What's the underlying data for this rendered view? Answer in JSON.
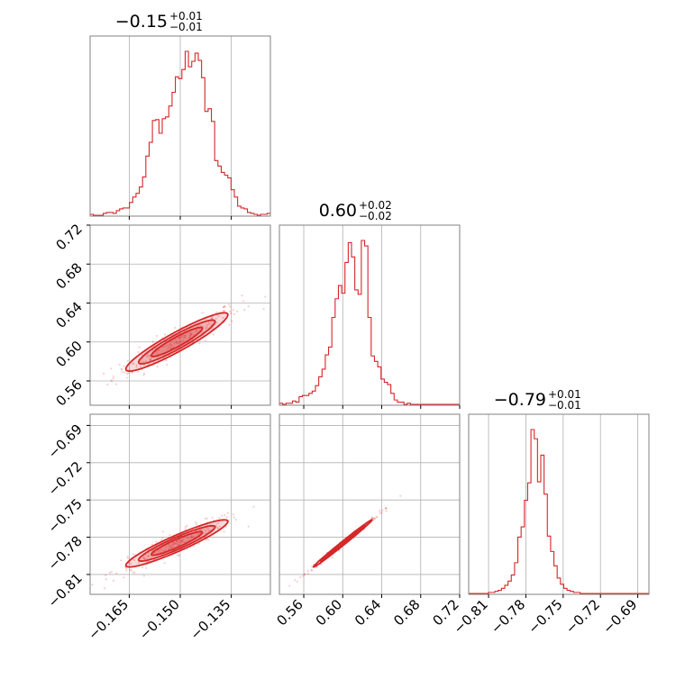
{
  "chart_data": {
    "type": "corner",
    "color": "#d62728",
    "grid": true,
    "parameters": [
      {
        "title_main": "−0.15",
        "title_sup": "+0.01",
        "title_sub": "−0.01",
        "range": [
          -0.1765,
          -0.1235
        ],
        "ticks": [
          -0.165,
          -0.15,
          -0.135
        ],
        "tick_labels": [
          "−0.165",
          "−0.150",
          "−0.135"
        ]
      },
      {
        "title_main": "0.60",
        "title_sup": "+0.02",
        "title_sub": "−0.02",
        "range": [
          0.535,
          0.72
        ],
        "ticks": [
          0.56,
          0.6,
          0.64,
          0.68,
          0.72
        ],
        "tick_labels": [
          "0.56",
          "0.60",
          "0.64",
          "0.68",
          "0.72"
        ]
      },
      {
        "title_main": "−0.79",
        "title_sup": "+0.01",
        "title_sub": "−0.01",
        "range": [
          -0.826,
          -0.681
        ],
        "ticks": [
          -0.81,
          -0.78,
          -0.75,
          -0.72,
          -0.69
        ],
        "tick_labels": [
          "−0.81",
          "−0.78",
          "−0.75",
          "−0.72",
          "−0.69"
        ]
      }
    ],
    "histograms": [
      {
        "edges": [
          -0.1765,
          -0.1235
        ],
        "counts": [
          1,
          0,
          0,
          0,
          2,
          3,
          3,
          2,
          5,
          7,
          8,
          8,
          14,
          20,
          24,
          31,
          42,
          65,
          80,
          104,
          105,
          90,
          106,
          108,
          120,
          135,
          152,
          150,
          160,
          180,
          163,
          169,
          178,
          170,
          151,
          114,
          117,
          103,
          60,
          54,
          47,
          44,
          41,
          28,
          20,
          10,
          8,
          7,
          3,
          2,
          1,
          0,
          1,
          1,
          2
        ]
      },
      {
        "edges": [
          0.535,
          0.72
        ],
        "counts": [
          1,
          0,
          1,
          1,
          3,
          2,
          7,
          8,
          8,
          10,
          12,
          17,
          25,
          32,
          45,
          52,
          79,
          96,
          108,
          101,
          129,
          147,
          134,
          104,
          100,
          149,
          144,
          79,
          44,
          39,
          34,
          23,
          20,
          18,
          10,
          4,
          2,
          2,
          0,
          1,
          0,
          0,
          0,
          0,
          0,
          0,
          0,
          0,
          0,
          0,
          0,
          0,
          0,
          0,
          0
        ]
      },
      {
        "edges": [
          -0.826,
          -0.681
        ],
        "counts": [
          0,
          0,
          0,
          0,
          0,
          0,
          1,
          1,
          2,
          3,
          5,
          8,
          12,
          18,
          30,
          55,
          65,
          91,
          108,
          160,
          151,
          109,
          135,
          97,
          56,
          41,
          27,
          15,
          9,
          5,
          3,
          2,
          1,
          1,
          0,
          0,
          0,
          0,
          0,
          0,
          0,
          0,
          0,
          0,
          0,
          0,
          0,
          0,
          0,
          0,
          0,
          0,
          0,
          0,
          0
        ]
      }
    ],
    "joint": [
      {
        "x_param": 0,
        "y_param": 1,
        "mean": [
          -0.151,
          0.6
        ],
        "sd": [
          0.0075,
          0.015
        ],
        "corr": 0.93
      },
      {
        "x_param": 0,
        "y_param": 2,
        "mean": [
          -0.151,
          -0.785
        ],
        "sd": [
          0.0075,
          0.0095
        ],
        "corr": 0.93
      },
      {
        "x_param": 1,
        "y_param": 2,
        "mean": [
          0.6,
          -0.785
        ],
        "sd": [
          0.015,
          0.0095
        ],
        "corr": 0.995
      }
    ]
  }
}
